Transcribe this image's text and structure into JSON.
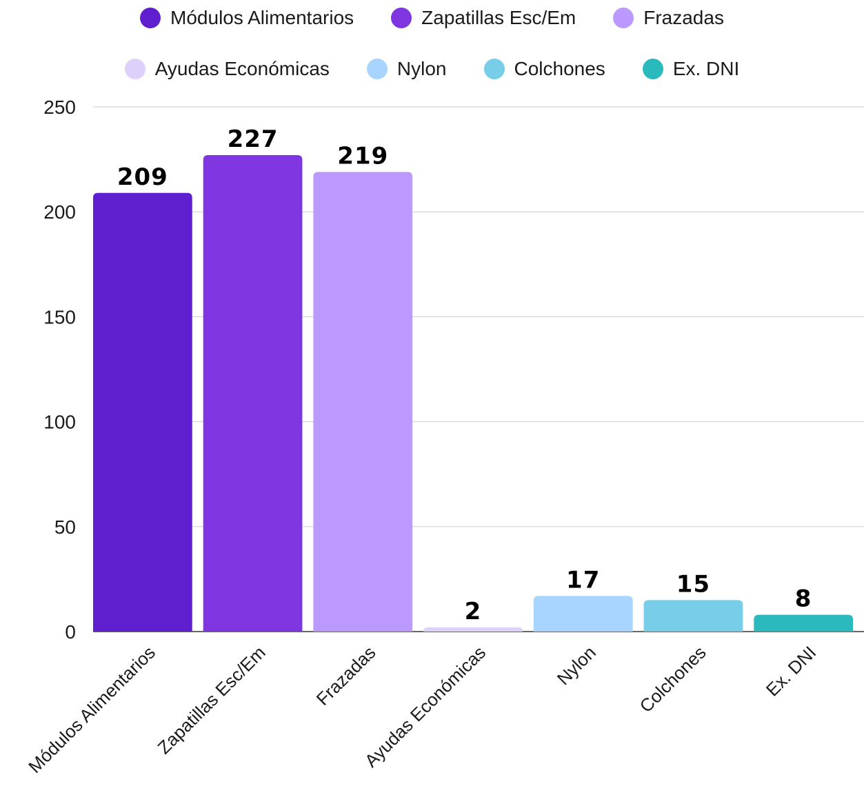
{
  "chart_data": {
    "type": "bar",
    "categories": [
      "Módulos Alimentarios",
      "Zapatillas Esc/Em",
      "Frazadas",
      "Ayudas Económicas",
      "Nylon",
      "Colchones",
      "Ex. DNI"
    ],
    "values": [
      209,
      227,
      219,
      2,
      17,
      15,
      8
    ],
    "data_labels": [
      "209",
      "227",
      "219",
      "2",
      "17",
      "15",
      "8"
    ],
    "colors": [
      "#5f1fcf",
      "#7f35e0",
      "#bb99ff",
      "#ddd0fb",
      "#a8d5ff",
      "#78cde9",
      "#2ab9bd"
    ],
    "title": "",
    "xlabel": "",
    "ylabel": "",
    "ylim": [
      0,
      250
    ],
    "yticks": [
      0,
      50,
      100,
      150,
      200,
      250
    ],
    "ytick_labels": [
      "0",
      "50",
      "100",
      "150",
      "200",
      "250"
    ],
    "grid": "horizontal",
    "legend_position": "top",
    "legend_entries": [
      {
        "label": "Módulos Alimentarios",
        "color": "#5f1fcf"
      },
      {
        "label": "Zapatillas Esc/Em",
        "color": "#7f35e0"
      },
      {
        "label": "Frazadas",
        "color": "#bb99ff"
      },
      {
        "label": "Ayudas Económicas",
        "color": "#ddd0fb"
      },
      {
        "label": "Nylon",
        "color": "#a8d5ff"
      },
      {
        "label": "Colchones",
        "color": "#78cde9"
      },
      {
        "label": "Ex. DNI",
        "color": "#2ab9bd"
      }
    ]
  }
}
